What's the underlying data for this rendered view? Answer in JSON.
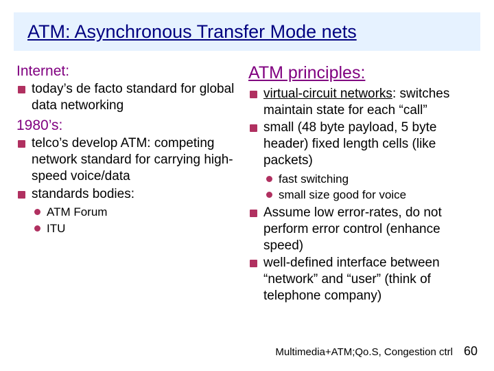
{
  "title": "ATM: Asynchronous Transfer Mode nets",
  "colors": {
    "title_band_bg": "#e6f2ff",
    "title_text": "#000080",
    "heading_text": "#800080",
    "bullet_square": "#b03060",
    "bullet_circle": "#b03060",
    "body_text": "#000000",
    "background": "#ffffff"
  },
  "left": {
    "heading_a": "Internet:",
    "items_a": [
      "today’s de facto standard for global data networking"
    ],
    "heading_b": "1980’s:",
    "items_b": [
      "telco’s develop ATM: competing network standard for carrying high-speed voice/data",
      "standards bodies:"
    ],
    "sub_b": [
      "ATM Forum",
      "ITU"
    ]
  },
  "right": {
    "heading": "ATM principles:",
    "items": [
      {
        "lead_u": "virtual-circuit networks",
        "lead_tail": ":",
        "rest": " switches maintain state for each “call”"
      },
      {
        "text": "small (48 byte payload, 5 byte header) fixed length cells (like packets)",
        "sub": [
          "fast switching",
          "small size good for voice"
        ]
      },
      {
        "text": "Assume low error-rates, do not perform error control (enhance speed)"
      },
      {
        "text": "well-defined interface between “network” and “user” (think of telephone company)"
      }
    ]
  },
  "footer": {
    "text": "Multimedia+ATM;Qo.S, Congestion ctrl",
    "page": "60"
  }
}
